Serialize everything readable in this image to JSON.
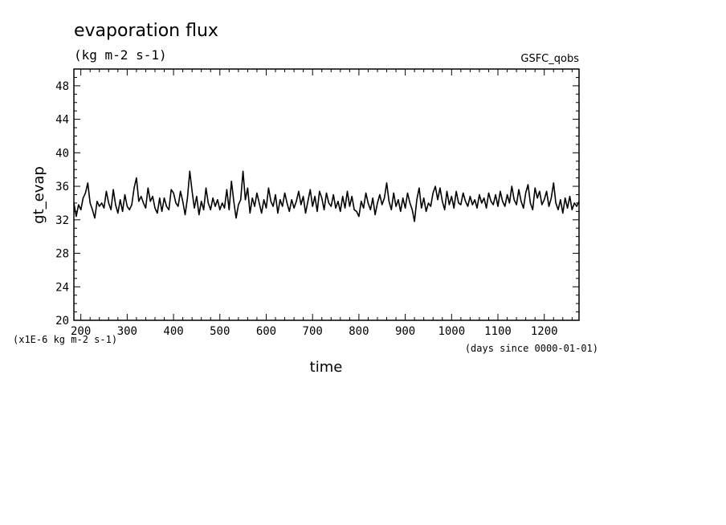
{
  "chart_data": {
    "type": "line",
    "title": "evaporation flux",
    "subtitle": "(kg m-2 s-1)",
    "source_label": "GSFC_qobs",
    "xlabel": "time",
    "xunit": "(days since 0000-01-01)",
    "ylabel": "gt_evap",
    "yunit": "(x1E-6 kg m-2 s-1)",
    "xlim": [
      185,
      1275
    ],
    "ylim": [
      20,
      50
    ],
    "xticks": [
      200,
      300,
      400,
      500,
      600,
      700,
      800,
      900,
      1000,
      1100,
      1200
    ],
    "yticks": [
      20,
      24,
      28,
      32,
      36,
      40,
      44,
      48
    ],
    "grid": false,
    "series": [
      {
        "values": [
          [
            185,
            34.0
          ],
          [
            190,
            32.4
          ],
          [
            195,
            33.8
          ],
          [
            200,
            33.2
          ],
          [
            205,
            34.6
          ],
          [
            210,
            35.2
          ],
          [
            215,
            36.4
          ],
          [
            220,
            34.0
          ],
          [
            225,
            33.2
          ],
          [
            230,
            32.2
          ],
          [
            235,
            34.2
          ],
          [
            240,
            33.6
          ],
          [
            245,
            34.0
          ],
          [
            250,
            33.4
          ],
          [
            255,
            35.4
          ],
          [
            260,
            34.0
          ],
          [
            265,
            33.2
          ],
          [
            270,
            35.6
          ],
          [
            275,
            33.8
          ],
          [
            280,
            32.8
          ],
          [
            285,
            34.4
          ],
          [
            290,
            33.0
          ],
          [
            295,
            35.0
          ],
          [
            300,
            33.6
          ],
          [
            305,
            33.2
          ],
          [
            310,
            33.8
          ],
          [
            315,
            35.8
          ],
          [
            320,
            37.0
          ],
          [
            325,
            34.2
          ],
          [
            330,
            34.8
          ],
          [
            335,
            34.0
          ],
          [
            340,
            33.4
          ],
          [
            345,
            35.8
          ],
          [
            350,
            34.2
          ],
          [
            355,
            34.8
          ],
          [
            360,
            33.4
          ],
          [
            365,
            32.8
          ],
          [
            370,
            34.6
          ],
          [
            375,
            33.0
          ],
          [
            380,
            34.6
          ],
          [
            385,
            33.6
          ],
          [
            390,
            33.2
          ],
          [
            395,
            35.6
          ],
          [
            400,
            35.2
          ],
          [
            405,
            34.0
          ],
          [
            410,
            33.6
          ],
          [
            415,
            35.4
          ],
          [
            420,
            34.2
          ],
          [
            425,
            32.6
          ],
          [
            430,
            34.6
          ],
          [
            435,
            37.8
          ],
          [
            440,
            35.4
          ],
          [
            445,
            33.4
          ],
          [
            450,
            34.8
          ],
          [
            455,
            32.6
          ],
          [
            460,
            34.2
          ],
          [
            465,
            33.2
          ],
          [
            470,
            35.8
          ],
          [
            475,
            34.0
          ],
          [
            480,
            33.2
          ],
          [
            485,
            34.6
          ],
          [
            490,
            33.6
          ],
          [
            495,
            34.4
          ],
          [
            500,
            33.2
          ],
          [
            505,
            34.0
          ],
          [
            510,
            33.4
          ],
          [
            515,
            35.6
          ],
          [
            520,
            33.2
          ],
          [
            525,
            36.6
          ],
          [
            530,
            34.2
          ],
          [
            535,
            32.2
          ],
          [
            540,
            33.8
          ],
          [
            545,
            34.4
          ],
          [
            550,
            37.8
          ],
          [
            555,
            34.4
          ],
          [
            560,
            35.8
          ],
          [
            565,
            32.8
          ],
          [
            570,
            34.6
          ],
          [
            575,
            33.6
          ],
          [
            580,
            35.2
          ],
          [
            585,
            34.0
          ],
          [
            590,
            32.8
          ],
          [
            595,
            34.4
          ],
          [
            600,
            33.4
          ],
          [
            605,
            35.8
          ],
          [
            610,
            34.2
          ],
          [
            615,
            33.6
          ],
          [
            620,
            35.0
          ],
          [
            625,
            32.8
          ],
          [
            630,
            34.4
          ],
          [
            635,
            33.6
          ],
          [
            640,
            35.2
          ],
          [
            645,
            34.0
          ],
          [
            650,
            33.0
          ],
          [
            655,
            34.4
          ],
          [
            660,
            33.4
          ],
          [
            665,
            34.2
          ],
          [
            670,
            35.4
          ],
          [
            675,
            33.8
          ],
          [
            680,
            34.8
          ],
          [
            685,
            32.8
          ],
          [
            690,
            34.2
          ],
          [
            695,
            35.6
          ],
          [
            700,
            33.6
          ],
          [
            705,
            34.8
          ],
          [
            710,
            33.0
          ],
          [
            715,
            35.4
          ],
          [
            720,
            34.6
          ],
          [
            725,
            33.2
          ],
          [
            730,
            35.2
          ],
          [
            735,
            34.0
          ],
          [
            740,
            33.6
          ],
          [
            745,
            35.0
          ],
          [
            750,
            33.4
          ],
          [
            755,
            34.2
          ],
          [
            760,
            33.0
          ],
          [
            765,
            34.8
          ],
          [
            770,
            33.4
          ],
          [
            775,
            35.4
          ],
          [
            780,
            33.6
          ],
          [
            785,
            34.8
          ],
          [
            790,
            33.2
          ],
          [
            795,
            33.0
          ],
          [
            800,
            32.4
          ],
          [
            805,
            34.2
          ],
          [
            810,
            33.4
          ],
          [
            815,
            35.2
          ],
          [
            820,
            34.0
          ],
          [
            825,
            33.2
          ],
          [
            830,
            34.6
          ],
          [
            835,
            32.6
          ],
          [
            840,
            34.0
          ],
          [
            845,
            35.0
          ],
          [
            850,
            33.8
          ],
          [
            855,
            34.6
          ],
          [
            860,
            36.4
          ],
          [
            865,
            34.2
          ],
          [
            870,
            33.2
          ],
          [
            875,
            35.2
          ],
          [
            880,
            33.6
          ],
          [
            885,
            34.4
          ],
          [
            890,
            33.0
          ],
          [
            895,
            34.6
          ],
          [
            900,
            33.4
          ],
          [
            905,
            35.2
          ],
          [
            910,
            34.0
          ],
          [
            915,
            33.2
          ],
          [
            920,
            31.8
          ],
          [
            925,
            34.4
          ],
          [
            930,
            35.8
          ],
          [
            935,
            33.4
          ],
          [
            940,
            34.6
          ],
          [
            945,
            33.0
          ],
          [
            950,
            34.0
          ],
          [
            955,
            33.6
          ],
          [
            960,
            35.2
          ],
          [
            965,
            36.0
          ],
          [
            970,
            34.4
          ],
          [
            975,
            35.8
          ],
          [
            980,
            34.2
          ],
          [
            985,
            33.2
          ],
          [
            990,
            35.4
          ],
          [
            995,
            33.8
          ],
          [
            1000,
            34.8
          ],
          [
            1005,
            33.4
          ],
          [
            1010,
            35.4
          ],
          [
            1015,
            34.0
          ],
          [
            1020,
            33.8
          ],
          [
            1025,
            35.2
          ],
          [
            1030,
            34.2
          ],
          [
            1035,
            33.6
          ],
          [
            1040,
            34.8
          ],
          [
            1045,
            33.8
          ],
          [
            1050,
            34.4
          ],
          [
            1055,
            33.4
          ],
          [
            1060,
            35.0
          ],
          [
            1065,
            34.0
          ],
          [
            1070,
            34.6
          ],
          [
            1075,
            33.4
          ],
          [
            1080,
            35.2
          ],
          [
            1085,
            34.2
          ],
          [
            1090,
            33.8
          ],
          [
            1095,
            35.0
          ],
          [
            1100,
            33.6
          ],
          [
            1105,
            35.4
          ],
          [
            1110,
            34.2
          ],
          [
            1115,
            33.6
          ],
          [
            1120,
            35.0
          ],
          [
            1125,
            34.0
          ],
          [
            1130,
            36.0
          ],
          [
            1135,
            34.4
          ],
          [
            1140,
            33.8
          ],
          [
            1145,
            35.6
          ],
          [
            1150,
            34.2
          ],
          [
            1155,
            33.4
          ],
          [
            1160,
            35.2
          ],
          [
            1165,
            36.2
          ],
          [
            1170,
            34.0
          ],
          [
            1175,
            33.2
          ],
          [
            1180,
            35.8
          ],
          [
            1185,
            34.6
          ],
          [
            1190,
            35.4
          ],
          [
            1195,
            33.8
          ],
          [
            1200,
            34.4
          ],
          [
            1205,
            35.4
          ],
          [
            1210,
            33.6
          ],
          [
            1215,
            34.6
          ],
          [
            1220,
            36.4
          ],
          [
            1225,
            34.0
          ],
          [
            1230,
            33.2
          ],
          [
            1235,
            34.4
          ],
          [
            1240,
            32.8
          ],
          [
            1245,
            34.6
          ],
          [
            1250,
            33.4
          ],
          [
            1255,
            34.8
          ],
          [
            1260,
            33.2
          ],
          [
            1265,
            34.0
          ],
          [
            1270,
            33.6
          ],
          [
            1275,
            34.2
          ]
        ]
      }
    ]
  }
}
